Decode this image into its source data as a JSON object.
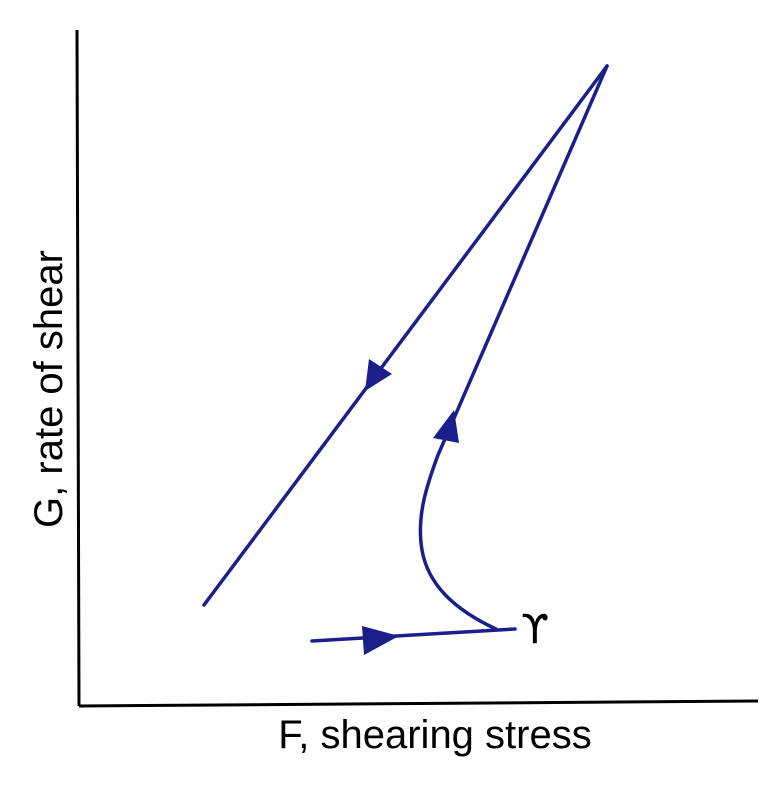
{
  "axes": {
    "x_label": "F, shearing stress",
    "y_label": "G, rate of shear"
  },
  "point_label": "ϒ",
  "colors": {
    "curve": "#1a1f8c",
    "axes": "#000000"
  },
  "curve": {
    "segments": [
      {
        "name": "initial-stress-segment",
        "direction": "right"
      },
      {
        "name": "upcurve-segment",
        "direction": "up"
      },
      {
        "name": "downcurve-segment",
        "direction": "down-left"
      }
    ]
  }
}
